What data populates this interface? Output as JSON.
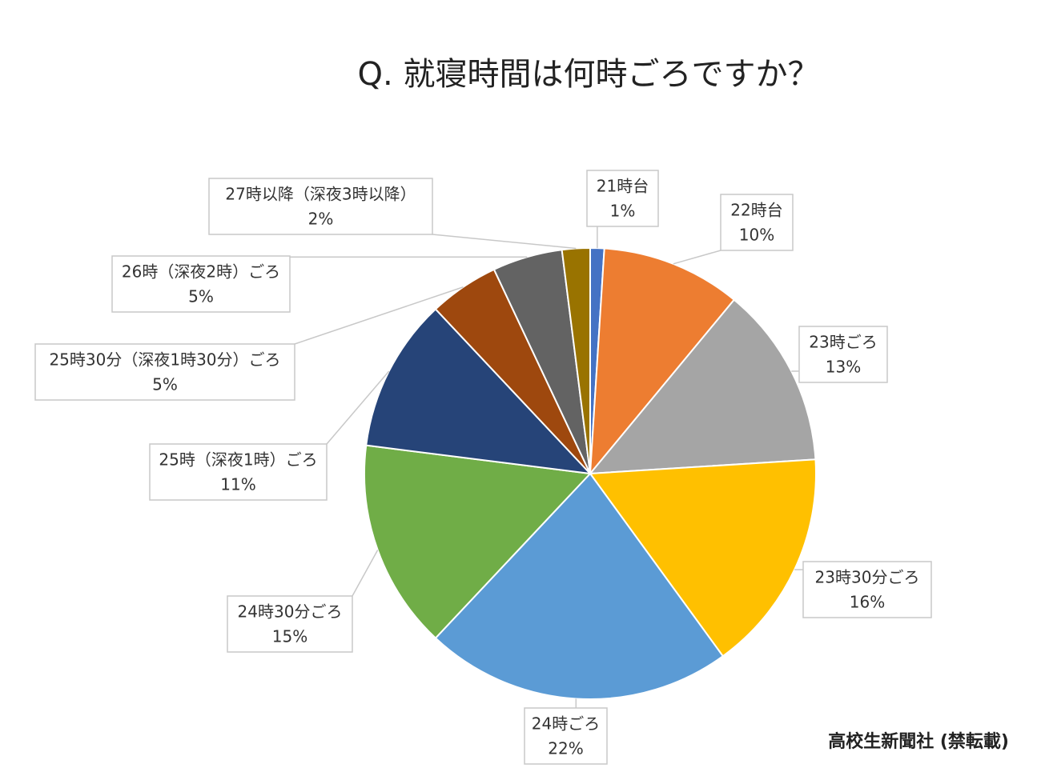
{
  "chart_data": {
    "type": "pie",
    "title": "Q. 就寝時間は何時ごろですか？",
    "categories": [
      "21時台",
      "22時台",
      "23時ごろ",
      "23時30分ごろ",
      "24時ごろ",
      "24時30分ごろ",
      "25時（深夜1時）ごろ",
      "25時30分（深夜1時30分）ごろ",
      "26時（深夜2時）ごろ",
      "27時以降（深夜3時以降）"
    ],
    "values": [
      1,
      10,
      13,
      16,
      22,
      15,
      11,
      5,
      5,
      2
    ],
    "value_labels": [
      "1%",
      "10%",
      "13%",
      "16%",
      "22%",
      "15%",
      "11%",
      "5%",
      "5%",
      "2%"
    ],
    "colors": [
      "#4472c4",
      "#ed7d31",
      "#a5a5a5",
      "#ffc000",
      "#5b9bd5",
      "#70ad47",
      "#264478",
      "#9e480e",
      "#636363",
      "#997300"
    ],
    "source": "高校生新聞社 (禁転載)"
  }
}
